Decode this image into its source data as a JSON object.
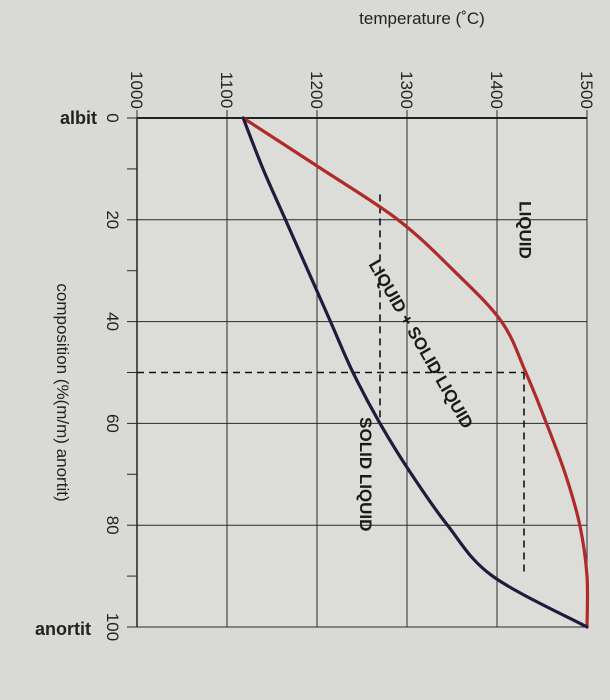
{
  "chart_data": {
    "type": "line",
    "orientation": "rotated-90-clockwise",
    "x_axis": {
      "label": "composition (%(m/m) anortit)",
      "ticks": [
        0,
        20,
        40,
        60,
        80,
        100
      ],
      "range": [
        0,
        100
      ],
      "start_label": "albit",
      "end_label": "anortit"
    },
    "y_axis": {
      "label": "temperature (˚C)",
      "ticks": [
        1000,
        1100,
        1200,
        1300,
        1400,
        1500
      ],
      "range": [
        1000,
        1500
      ]
    },
    "grid": true,
    "series": [
      {
        "role": "liquidus",
        "color": "#b02a2a",
        "points": [
          [
            0,
            1118
          ],
          [
            10,
            1205
          ],
          [
            20,
            1290
          ],
          [
            30,
            1352
          ],
          [
            40,
            1405
          ],
          [
            50,
            1432
          ],
          [
            60,
            1455
          ],
          [
            70,
            1476
          ],
          [
            80,
            1492
          ],
          [
            90,
            1500
          ],
          [
            100,
            1500
          ]
        ]
      },
      {
        "role": "solidus",
        "color": "#1c1c3c",
        "points": [
          [
            0,
            1118
          ],
          [
            10,
            1140
          ],
          [
            20,
            1165
          ],
          [
            30,
            1190
          ],
          [
            40,
            1215
          ],
          [
            50,
            1240
          ],
          [
            60,
            1270
          ],
          [
            70,
            1305
          ],
          [
            80,
            1345
          ],
          [
            90,
            1395
          ],
          [
            100,
            1500
          ]
        ]
      }
    ],
    "dashed_lines": [
      {
        "from": [
          50,
          1000
        ],
        "to": [
          50,
          1430
        ]
      },
      {
        "from": [
          50,
          1430
        ],
        "to": [
          90,
          1430
        ]
      },
      {
        "from": [
          15,
          1270
        ],
        "to": [
          60,
          1270
        ]
      }
    ],
    "region_labels": {
      "liquid": "LIQUID",
      "mixed": "LIQUID + SOLID LIQUID",
      "solid": "SOLID LIQUID"
    }
  }
}
